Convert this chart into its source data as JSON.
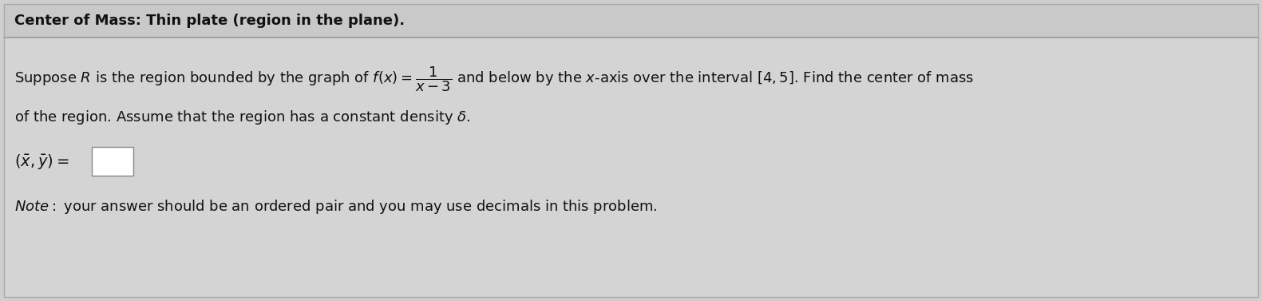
{
  "title": "Center of Mass: Thin plate (region in the plane).",
  "bg_color": "#d0cfcf",
  "title_bg_color": "#c8c8c8",
  "content_bg_color": "#d4d4d4",
  "line1_part1": "Suppose $R$ is the region bounded by the graph of $f(x) = $",
  "line1_frac_num": "1",
  "line1_frac_den": "$x-3$",
  "line1_part2": " and below by the $x$-axis over the interval $[4, 5]$. Find the center of mass",
  "line2": "of the region. Assume that the region has a constant density $\\delta$.",
  "answer_label": "$(\\bar{x}, \\bar{y}) =$",
  "note": "your answer should be an ordered pair and you may use decimals in this problem.",
  "note_italic": "Note:",
  "title_fontsize": 13,
  "body_fontsize": 13,
  "note_fontsize": 13
}
